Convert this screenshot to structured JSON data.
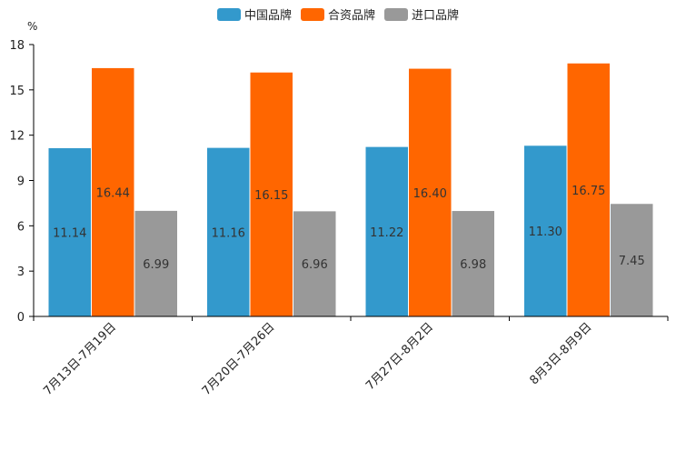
{
  "chart_data": {
    "type": "bar",
    "unit_label": "%",
    "categories": [
      "7月13日-7月19日",
      "7月20日-7月26日",
      "7月27日-8月2日",
      "8月3日-8月9日"
    ],
    "series": [
      {
        "name": "中国品牌",
        "color": "#3399cc",
        "values": [
          11.14,
          11.16,
          11.22,
          11.3
        ],
        "labels": [
          "11.14",
          "11.16",
          "11.22",
          "11.30"
        ]
      },
      {
        "name": "合资品牌",
        "color": "#ff6600",
        "values": [
          16.44,
          16.15,
          16.4,
          16.75
        ],
        "labels": [
          "16.44",
          "16.15",
          "16.40",
          "16.75"
        ]
      },
      {
        "name": "进口品牌",
        "color": "#999999",
        "values": [
          6.99,
          6.96,
          6.98,
          7.45
        ],
        "labels": [
          "6.99",
          "6.96",
          "6.98",
          "7.45"
        ]
      }
    ],
    "ylim": [
      0,
      18
    ],
    "yticks": [
      "0",
      "3",
      "6",
      "9",
      "12",
      "15",
      "18"
    ],
    "legend_position": "top-center",
    "grid": false
  }
}
